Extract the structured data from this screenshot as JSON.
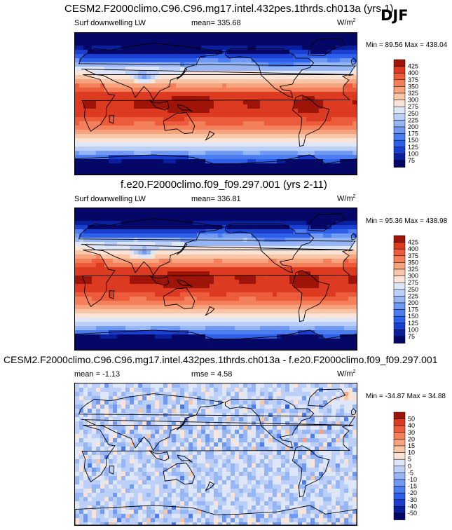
{
  "season": "DJF",
  "colors": {
    "abs_palette": [
      "#050766",
      "#0a1f9e",
      "#1a3fd0",
      "#2e5fe8",
      "#4b7cf0",
      "#6f99f3",
      "#96b6f6",
      "#bccff8",
      "#dfe6f7",
      "#fbe4d6",
      "#f9c7a8",
      "#f7a47e",
      "#f3805a",
      "#ec5c3a",
      "#dc3a21",
      "#c12312",
      "#9e1409",
      "#760a05"
    ],
    "diff_palette": [
      "#050766",
      "#0a1f9e",
      "#1a3fd0",
      "#2e5fe8",
      "#4b7cf0",
      "#6f99f3",
      "#96b6f6",
      "#bccff8",
      "#dfe6f7",
      "#fbe4d6",
      "#f9c7a8",
      "#f7a47e",
      "#f3805a",
      "#ec5c3a",
      "#dc3a21",
      "#c12312",
      "#9e1409",
      "#760a05"
    ]
  },
  "chart_data": [
    {
      "type": "heatmap",
      "title": "CESM2.F2000climo.C96.C96.mg17.intel.432pes.1thrds.ch013a (yrs 1)",
      "variable": "Surf downwelling LW",
      "mean_label": "mean= 335.68",
      "units_base": "W/m",
      "units_exp": "2",
      "min_label": "Min =  89.56",
      "max_label": "Max = 438.04",
      "levels": [
        75,
        100,
        125,
        150,
        175,
        200,
        225,
        250,
        275,
        300,
        325,
        350,
        375,
        400,
        425
      ],
      "level_labels": [
        "425",
        "400",
        "375",
        "350",
        "325",
        "300",
        "275",
        "250",
        "225",
        "200",
        "175",
        "150",
        "125",
        "100",
        "75"
      ]
    },
    {
      "type": "heatmap",
      "title": "f.e20.F2000climo.f09_f09.297.001 (yrs 2-11)",
      "variable": "Surf downwelling LW",
      "mean_label": "mean= 336.81",
      "units_base": "W/m",
      "units_exp": "2",
      "min_label": "Min =  95.36",
      "max_label": "Max = 438.98",
      "levels": [
        75,
        100,
        125,
        150,
        175,
        200,
        225,
        250,
        275,
        300,
        325,
        350,
        375,
        400,
        425
      ],
      "level_labels": [
        "425",
        "400",
        "375",
        "350",
        "325",
        "300",
        "275",
        "250",
        "225",
        "200",
        "175",
        "150",
        "125",
        "100",
        "75"
      ]
    },
    {
      "type": "heatmap",
      "title": "CESM2.F2000climo.C96.C96.mg17.intel.432pes.1thrds.ch013a - f.e20.F2000climo.f09_f09.297.001",
      "mean_label": "mean =  -1.13",
      "rmse_label": "rmse =   4.58",
      "units_base": "W/m",
      "units_exp": "2",
      "min_label": "Min = -34.87",
      "max_label": "Max =  34.88",
      "levels": [
        -50,
        -40,
        -30,
        -20,
        -15,
        -10,
        -5,
        0,
        5,
        10,
        15,
        20,
        30,
        40,
        50
      ],
      "level_labels": [
        "50",
        "40",
        "30",
        "20",
        "15",
        "10",
        "5",
        "0",
        "-5",
        "-10",
        "-15",
        "-20",
        "-30",
        "-40",
        "-50"
      ]
    }
  ]
}
